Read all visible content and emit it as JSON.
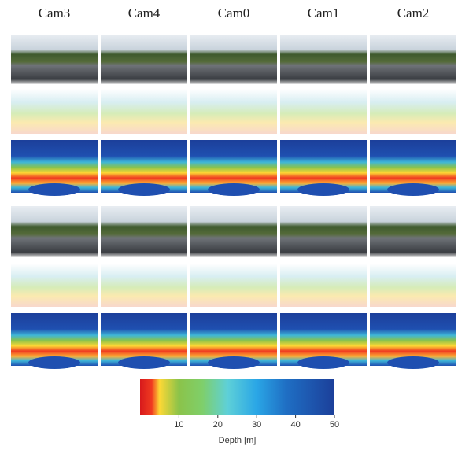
{
  "columns": [
    "Cam3",
    "Cam4",
    "Cam0",
    "Cam1",
    "Cam2"
  ],
  "colorbar": {
    "label": "Depth [m]",
    "range": [
      0,
      50
    ],
    "ticks": [
      10,
      20,
      30,
      40,
      50
    ]
  }
}
